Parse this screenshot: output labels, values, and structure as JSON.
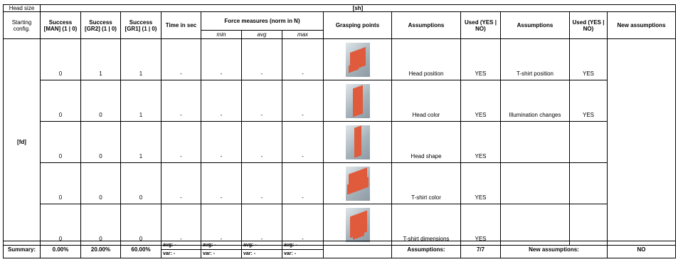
{
  "header": {
    "head_size_label": "Head size",
    "head_size_value": "[sh]",
    "starting_config": "Starting config.",
    "success_man": "Success [MAN] (1 | 0)",
    "success_gr2": "Success [GR2] (1 | 0)",
    "success_gr1": "Success [GR1] (1 | 0)",
    "time": "Time in sec",
    "force": "Force measures (norm in N)",
    "force_min": "min",
    "force_avg": "avg",
    "force_max": "max",
    "grasping": "Grasping points",
    "assumptions": "Assumptions",
    "used": "Used (YES | NO)",
    "assumptions2": "Assumptions",
    "used2": "Used (YES | NO)",
    "new_assumptions": "New assumptions"
  },
  "config_label": "[fd]",
  "rows": [
    {
      "man": "0",
      "gr2": "1",
      "gr1": "1",
      "time": "-",
      "min": "-",
      "avg": "-",
      "max": "-",
      "thumb": "grasp-image-1",
      "assump": "Head position",
      "used": "YES",
      "assump2": "T-shirt position",
      "used2": "YES"
    },
    {
      "man": "0",
      "gr2": "0",
      "gr1": "1",
      "time": "-",
      "min": "-",
      "avg": "-",
      "max": "-",
      "thumb": "grasp-image-2",
      "assump": "Head color",
      "used": "YES",
      "assump2": "Illumination changes",
      "used2": "YES"
    },
    {
      "man": "0",
      "gr2": "0",
      "gr1": "1",
      "time": "-",
      "min": "-",
      "avg": "-",
      "max": "-",
      "thumb": "grasp-image-3",
      "assump": "Head shape",
      "used": "YES",
      "assump2": "",
      "used2": ""
    },
    {
      "man": "0",
      "gr2": "0",
      "gr1": "0",
      "time": "-",
      "min": "-",
      "avg": "-",
      "max": "-",
      "thumb": "grasp-image-4",
      "assump": "T-shirt color",
      "used": "YES",
      "assump2": "",
      "used2": ""
    },
    {
      "man": "0",
      "gr2": "0",
      "gr1": "0",
      "time": "-",
      "min": "-",
      "avg": "-",
      "max": "-",
      "thumb": "grasp-image-5",
      "assump": "T-shirt dimensions",
      "used": "YES",
      "assump2": "",
      "used2": ""
    }
  ],
  "summary": {
    "label": "Summary:",
    "man": "0.00%",
    "gr2": "20.00%",
    "gr1": "60.00%",
    "time_avg": "avg: -",
    "time_var": "var: -",
    "min_avg": "avg: -",
    "min_var": "var: -",
    "avg_avg": "avg: -",
    "avg_var": "var: -",
    "max_avg": "avg: -",
    "max_var": "var: -",
    "assumptions_label": "Assumptions:",
    "assumptions_value": "7/7",
    "new_assumptions_label": "New assumptions:",
    "new_assumptions_value": "NO"
  },
  "colors": {
    "shirt": "#e05a3c",
    "background": "#a7b3bb"
  }
}
